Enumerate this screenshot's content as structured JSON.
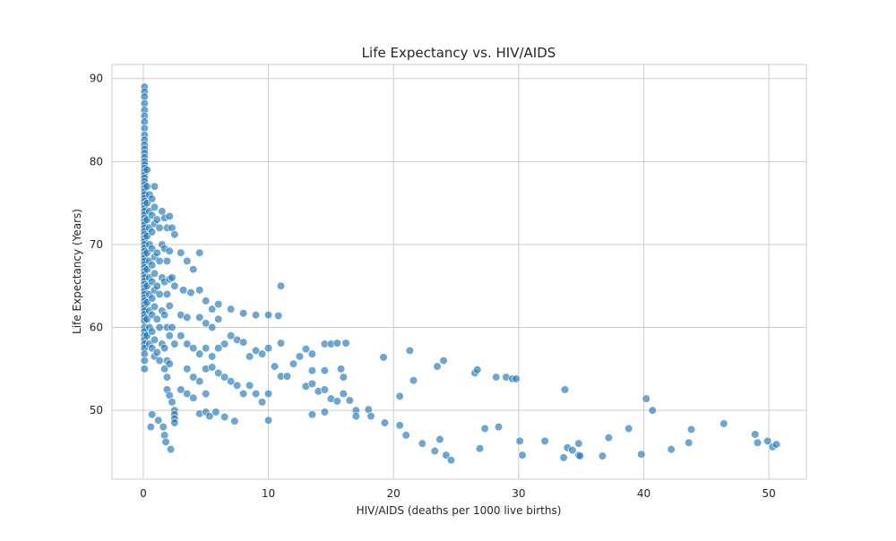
{
  "chart_data": {
    "type": "scatter",
    "title": "Life Expectancy vs. HIV/AIDS",
    "xlabel": "HIV/AIDS (deaths per 1000 live births)",
    "ylabel": "Life Expectancy (Years)",
    "xlim": [
      -2.5,
      53.0
    ],
    "ylim": [
      41.7,
      91.7
    ],
    "xticks": [
      0,
      10,
      20,
      30,
      40,
      50
    ],
    "yticks": [
      50,
      60,
      70,
      80,
      90
    ],
    "grid": true,
    "legend": "none",
    "colors": {
      "point": "#1f77b4",
      "point_edge": "#ffffff",
      "grid": "#cccccc",
      "frame": "#cccccc"
    },
    "point_alpha": 0.65,
    "series": [
      {
        "points": [
          [
            0.1,
            89
          ],
          [
            0.1,
            88.4
          ],
          [
            0.1,
            87.8
          ],
          [
            0.1,
            87
          ],
          [
            0.1,
            86.2
          ],
          [
            0.1,
            85.5
          ],
          [
            0.1,
            84.8
          ],
          [
            0.1,
            84
          ],
          [
            0.1,
            83.2
          ],
          [
            0.1,
            82.6
          ],
          [
            0.1,
            82
          ],
          [
            0.1,
            81.5
          ],
          [
            0.1,
            81
          ],
          [
            0.1,
            80.5
          ],
          [
            0.1,
            80
          ],
          [
            0.1,
            79.6
          ],
          [
            0.1,
            79.2
          ],
          [
            0.1,
            78.8
          ],
          [
            0.1,
            78.4
          ],
          [
            0.1,
            78
          ],
          [
            0.1,
            77.6
          ],
          [
            0.1,
            77.2
          ],
          [
            0.1,
            76.8
          ],
          [
            0.1,
            76.4
          ],
          [
            0.1,
            76
          ],
          [
            0.1,
            75.6
          ],
          [
            0.1,
            75.2
          ],
          [
            0.1,
            74.8
          ],
          [
            0.1,
            74.4
          ],
          [
            0.1,
            74
          ],
          [
            0.1,
            73.6
          ],
          [
            0.1,
            73.2
          ],
          [
            0.1,
            72.8
          ],
          [
            0.1,
            72.4
          ],
          [
            0.1,
            72
          ],
          [
            0.1,
            71.6
          ],
          [
            0.1,
            71.2
          ],
          [
            0.1,
            70.8
          ],
          [
            0.1,
            70.4
          ],
          [
            0.1,
            70
          ],
          [
            0.1,
            69.6
          ],
          [
            0.1,
            69.2
          ],
          [
            0.1,
            68.8
          ],
          [
            0.1,
            68.4
          ],
          [
            0.1,
            68
          ],
          [
            0.1,
            67.6
          ],
          [
            0.1,
            67.2
          ],
          [
            0.1,
            66.8
          ],
          [
            0.1,
            66.4
          ],
          [
            0.1,
            66
          ],
          [
            0.1,
            65.6
          ],
          [
            0.1,
            65.2
          ],
          [
            0.1,
            64.8
          ],
          [
            0.1,
            64.4
          ],
          [
            0.1,
            64
          ],
          [
            0.1,
            63.6
          ],
          [
            0.1,
            63.2
          ],
          [
            0.1,
            62.8
          ],
          [
            0.1,
            62.4
          ],
          [
            0.1,
            62
          ],
          [
            0.1,
            61.6
          ],
          [
            0.1,
            61.2
          ],
          [
            0.1,
            60.8
          ],
          [
            0.1,
            60
          ],
          [
            0.1,
            59.5
          ],
          [
            0.1,
            59
          ],
          [
            0.1,
            58.5
          ],
          [
            0.1,
            58
          ],
          [
            0.1,
            57.5
          ],
          [
            0.1,
            56.8
          ],
          [
            0.1,
            56
          ],
          [
            0.1,
            55
          ],
          [
            0.3,
            79
          ],
          [
            0.3,
            77
          ],
          [
            0.3,
            75
          ],
          [
            0.3,
            73
          ],
          [
            0.3,
            71
          ],
          [
            0.3,
            69
          ],
          [
            0.3,
            67
          ],
          [
            0.3,
            65
          ],
          [
            0.3,
            63
          ],
          [
            0.3,
            61
          ],
          [
            0.3,
            59
          ],
          [
            0.5,
            76
          ],
          [
            0.5,
            74
          ],
          [
            0.5,
            72
          ],
          [
            0.5,
            70
          ],
          [
            0.5,
            68
          ],
          [
            0.5,
            66
          ],
          [
            0.5,
            64
          ],
          [
            0.5,
            62
          ],
          [
            0.5,
            60
          ],
          [
            0.5,
            58
          ],
          [
            0.7,
            75.5
          ],
          [
            0.7,
            73.5
          ],
          [
            0.7,
            71.5
          ],
          [
            0.7,
            69.5
          ],
          [
            0.7,
            67.5
          ],
          [
            0.7,
            65.5
          ],
          [
            0.7,
            63.5
          ],
          [
            0.7,
            61.5
          ],
          [
            0.7,
            59.5
          ],
          [
            0.7,
            57.5
          ],
          [
            0.9,
            77
          ],
          [
            0.9,
            74.5
          ],
          [
            0.9,
            72.5
          ],
          [
            0.9,
            68.5
          ],
          [
            0.9,
            66.5
          ],
          [
            0.9,
            64.5
          ],
          [
            0.9,
            62.5
          ],
          [
            0.9,
            58.5
          ],
          [
            0.9,
            56.5
          ],
          [
            1.1,
            73
          ],
          [
            1.1,
            69
          ],
          [
            1.1,
            65
          ],
          [
            1.1,
            61
          ],
          [
            1.1,
            57
          ],
          [
            1.3,
            72
          ],
          [
            1.3,
            68
          ],
          [
            1.3,
            64
          ],
          [
            1.3,
            60
          ],
          [
            1.3,
            56
          ],
          [
            1.5,
            74
          ],
          [
            1.5,
            70
          ],
          [
            1.5,
            66
          ],
          [
            1.5,
            62
          ],
          [
            1.5,
            58
          ],
          [
            1.7,
            73.2
          ],
          [
            1.7,
            69.5
          ],
          [
            1.7,
            65.5
          ],
          [
            1.7,
            61.5
          ],
          [
            1.7,
            57.5
          ],
          [
            1.7,
            55
          ],
          [
            1.9,
            72
          ],
          [
            1.9,
            68
          ],
          [
            1.9,
            64
          ],
          [
            1.9,
            60
          ],
          [
            1.9,
            56
          ],
          [
            1.9,
            54
          ],
          [
            1.9,
            52.5
          ],
          [
            2.1,
            73.4
          ],
          [
            2.1,
            69.2
          ],
          [
            2.1,
            65.8
          ],
          [
            2.1,
            62.6
          ],
          [
            2.1,
            59
          ],
          [
            2.1,
            55.6
          ],
          [
            2.1,
            51.8
          ],
          [
            2.3,
            72
          ],
          [
            2.3,
            66
          ],
          [
            2.3,
            60
          ],
          [
            2.3,
            51
          ],
          [
            2.5,
            71.2
          ],
          [
            2.5,
            65
          ],
          [
            2.5,
            58
          ],
          [
            2.5,
            50
          ],
          [
            2.5,
            49.5
          ],
          [
            2.5,
            49
          ],
          [
            2.5,
            48.5
          ],
          [
            0.7,
            49.5
          ],
          [
            0.6,
            48
          ],
          [
            1.2,
            48.8
          ],
          [
            1.6,
            48
          ],
          [
            1.7,
            47
          ],
          [
            1.8,
            46.2
          ],
          [
            2.2,
            45.3
          ],
          [
            3.0,
            69
          ],
          [
            3.5,
            68
          ],
          [
            4.0,
            67
          ],
          [
            4.5,
            69
          ],
          [
            3.2,
            64.5
          ],
          [
            3.8,
            64.2
          ],
          [
            4.5,
            64.5
          ],
          [
            5.0,
            63.2
          ],
          [
            5.5,
            62.2
          ],
          [
            6.0,
            62.8
          ],
          [
            3.0,
            61.5
          ],
          [
            3.5,
            61.2
          ],
          [
            4.5,
            61.2
          ],
          [
            5.0,
            60.5
          ],
          [
            5.5,
            60
          ],
          [
            6.0,
            61
          ],
          [
            7.0,
            62.2
          ],
          [
            8.0,
            61.7
          ],
          [
            9.0,
            61.5
          ],
          [
            10.0,
            61.5
          ],
          [
            10.8,
            61.4
          ],
          [
            3.0,
            59
          ],
          [
            3.5,
            58
          ],
          [
            4.0,
            57.5
          ],
          [
            4.5,
            56.8
          ],
          [
            5.0,
            57.5
          ],
          [
            5.5,
            56.5
          ],
          [
            6.0,
            57.5
          ],
          [
            6.5,
            58
          ],
          [
            7.0,
            59
          ],
          [
            7.5,
            58.5
          ],
          [
            8.0,
            58.2
          ],
          [
            8.5,
            56.5
          ],
          [
            9.0,
            57.2
          ],
          [
            9.5,
            56.8
          ],
          [
            10.0,
            57.5
          ],
          [
            3.5,
            55
          ],
          [
            4.0,
            54
          ],
          [
            4.5,
            53.5
          ],
          [
            5.0,
            55
          ],
          [
            5.5,
            55.2
          ],
          [
            6.0,
            54.5
          ],
          [
            6.5,
            54
          ],
          [
            7.0,
            53.5
          ],
          [
            7.5,
            53
          ],
          [
            8.0,
            52
          ],
          [
            3.0,
            52.5
          ],
          [
            3.5,
            52
          ],
          [
            4.0,
            51.5
          ],
          [
            5.0,
            52
          ],
          [
            8.5,
            53
          ],
          [
            9.0,
            52
          ],
          [
            9.5,
            51
          ],
          [
            10.0,
            52
          ],
          [
            4.5,
            49.6
          ],
          [
            5.0,
            49.8
          ],
          [
            5.3,
            49.3
          ],
          [
            5.8,
            49.8
          ],
          [
            6.5,
            49.2
          ],
          [
            7.3,
            48.7
          ],
          [
            10.0,
            48.8
          ],
          [
            10.5,
            55.3
          ],
          [
            11.0,
            54.1
          ],
          [
            11.5,
            54.1
          ],
          [
            12.0,
            55.6
          ],
          [
            12.5,
            56.5
          ],
          [
            13.0,
            57.4
          ],
          [
            13.5,
            56.8
          ],
          [
            11.0,
            58.1
          ],
          [
            11.0,
            65
          ],
          [
            14.5,
            58
          ],
          [
            15.0,
            58
          ],
          [
            15.5,
            58.1
          ],
          [
            16.2,
            58.1
          ],
          [
            13.0,
            52.9
          ],
          [
            13.5,
            53.2
          ],
          [
            14.0,
            52.3
          ],
          [
            14.5,
            52.5
          ],
          [
            15.0,
            51.4
          ],
          [
            15.5,
            51.1
          ],
          [
            16.0,
            52
          ],
          [
            13.5,
            54.8
          ],
          [
            14.5,
            54.8
          ],
          [
            15.8,
            55
          ],
          [
            16.0,
            54
          ],
          [
            13.5,
            49.5
          ],
          [
            14.5,
            49.8
          ],
          [
            16.5,
            51.2
          ],
          [
            17.0,
            50
          ],
          [
            17.0,
            49.3
          ],
          [
            18.0,
            50.1
          ],
          [
            18.2,
            49.3
          ],
          [
            19.2,
            56.4
          ],
          [
            20.5,
            51.7
          ],
          [
            21.3,
            57.2
          ],
          [
            21.6,
            53.6
          ],
          [
            23.5,
            55.3
          ],
          [
            24.0,
            56
          ],
          [
            26.5,
            54.5
          ],
          [
            26.7,
            54.9
          ],
          [
            28.2,
            54
          ],
          [
            29.0,
            54
          ],
          [
            29.5,
            53.8
          ],
          [
            29.8,
            53.8
          ],
          [
            19.3,
            48.5
          ],
          [
            20.5,
            48.2
          ],
          [
            21.0,
            47
          ],
          [
            22.3,
            46
          ],
          [
            23.3,
            45.1
          ],
          [
            23.7,
            46.5
          ],
          [
            24.2,
            44.6
          ],
          [
            24.6,
            44
          ],
          [
            26.9,
            45.4
          ],
          [
            27.3,
            47.8
          ],
          [
            28.4,
            48
          ],
          [
            30.1,
            46.3
          ],
          [
            30.3,
            44.6
          ],
          [
            32.1,
            46.3
          ],
          [
            33.7,
            52.5
          ],
          [
            33.6,
            44.3
          ],
          [
            33.9,
            45.5
          ],
          [
            34.3,
            45.2
          ],
          [
            34.8,
            46
          ],
          [
            34.8,
            44.6
          ],
          [
            34.9,
            44.5
          ],
          [
            36.7,
            44.5
          ],
          [
            37.2,
            46.7
          ],
          [
            38.8,
            47.8
          ],
          [
            39.8,
            44.7
          ],
          [
            40.2,
            51.4
          ],
          [
            40.7,
            50
          ],
          [
            42.2,
            45.3
          ],
          [
            43.6,
            46.1
          ],
          [
            43.8,
            47.7
          ],
          [
            46.4,
            48.4
          ],
          [
            48.9,
            47.1
          ],
          [
            49.1,
            46.1
          ],
          [
            49.9,
            46.3
          ],
          [
            50.3,
            45.6
          ],
          [
            50.6,
            45.9
          ]
        ]
      }
    ]
  }
}
